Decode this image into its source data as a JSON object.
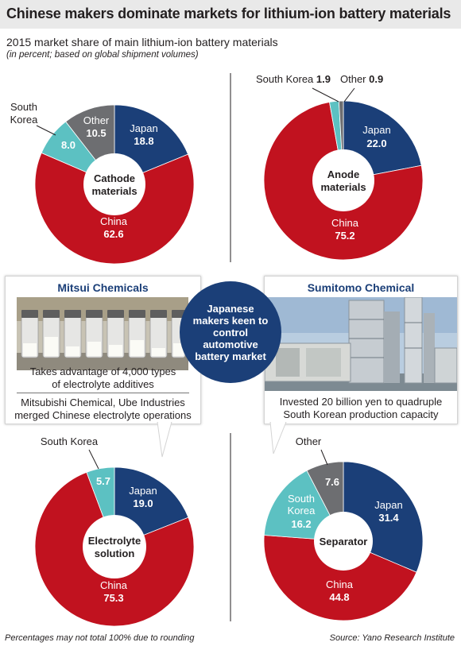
{
  "title": "Chinese makers dominate markets for lithium-ion battery materials",
  "subtitle": "2015 market share of main lithium-ion battery materials",
  "note": "(in percent; based on global shipment volumes)",
  "footnote": "Percentages may not total 100% due to rounding",
  "source": "Source: Yano Research Institute",
  "colors": {
    "japan": "#1b3f78",
    "china": "#c1121f",
    "south_korea": "#5cc1c2",
    "other": "#6d6e71",
    "hub": "#ffffff"
  },
  "chart_data": [
    {
      "type": "pie",
      "title": "Cathode materials",
      "slices": [
        {
          "label": "Japan",
          "value": 18.8,
          "color": "#1b3f78"
        },
        {
          "label": "China",
          "value": 62.6,
          "color": "#c1121f"
        },
        {
          "label": "South Korea",
          "value": 8.0,
          "color": "#5cc1c2"
        },
        {
          "label": "Other",
          "value": 10.5,
          "color": "#6d6e71"
        }
      ]
    },
    {
      "type": "pie",
      "title": "Anode materials",
      "slices": [
        {
          "label": "Japan",
          "value": 22.0,
          "color": "#1b3f78"
        },
        {
          "label": "China",
          "value": 75.2,
          "color": "#c1121f"
        },
        {
          "label": "South Korea",
          "value": 1.9,
          "color": "#5cc1c2"
        },
        {
          "label": "Other",
          "value": 0.9,
          "color": "#6d6e71"
        }
      ]
    },
    {
      "type": "pie",
      "title": "Electrolyte solution",
      "slices": [
        {
          "label": "Japan",
          "value": 19.0,
          "color": "#1b3f78"
        },
        {
          "label": "China",
          "value": 75.3,
          "color": "#c1121f"
        },
        {
          "label": "South Korea",
          "value": 5.7,
          "color": "#5cc1c2"
        }
      ]
    },
    {
      "type": "pie",
      "title": "Separator",
      "slices": [
        {
          "label": "Japan",
          "value": 31.4,
          "color": "#1b3f78"
        },
        {
          "label": "China",
          "value": 44.8,
          "color": "#c1121f"
        },
        {
          "label": "South Korea",
          "value": 16.2,
          "color": "#5cc1c2"
        },
        {
          "label": "Other",
          "value": 7.6,
          "color": "#6d6e71"
        }
      ]
    }
  ],
  "callouts": {
    "mitsui": {
      "title": "Mitsui Chemicals",
      "caption_1": "Takes advantage of 4,000 types",
      "caption_2": "of electrolyte additives",
      "caption_3": "Mitsubishi Chemical, Ube Industries",
      "caption_4": "merged Chinese electrolyte operations"
    },
    "center": "Japanese makers keen to control automotive battery market",
    "sumitomo": {
      "title": "Sumitomo Chemical",
      "caption_1": "Invested 20 billion yen to quadruple",
      "caption_2": "South Korean production capacity"
    }
  }
}
